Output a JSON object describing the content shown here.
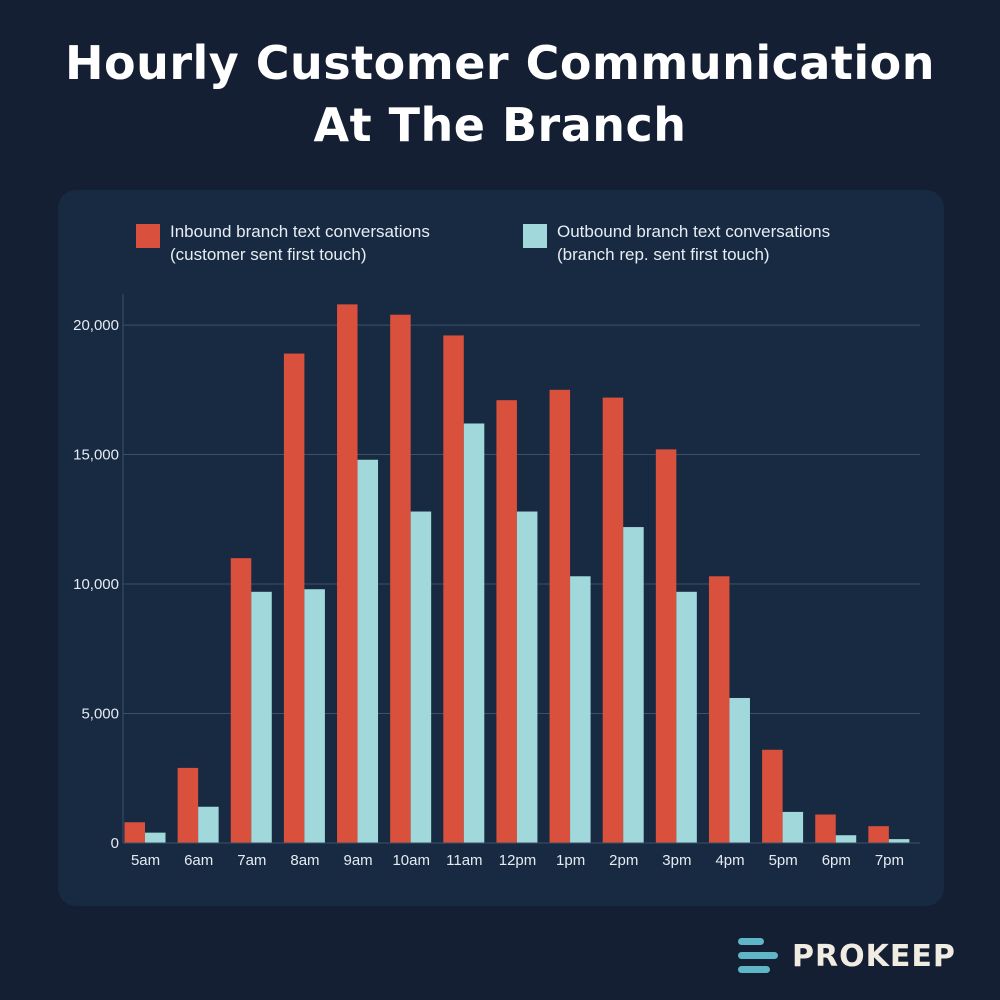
{
  "title_lines": [
    "Hourly Customer Communication",
    "At The Branch"
  ],
  "brand": {
    "name": "PROKEEP",
    "icon": "stacked-lines-logo-icon"
  },
  "colors": {
    "inbound": "#d9503c",
    "outbound": "#a1d8dc",
    "grid": "#3d5068",
    "text": "#e6ebf1"
  },
  "chart_data": {
    "type": "bar",
    "title": "Hourly Customer Communication At The Branch",
    "xlabel": "",
    "ylabel": "",
    "ylim": [
      0,
      21200
    ],
    "yticks": [
      0,
      5000,
      10000,
      15000,
      20000
    ],
    "ytick_labels": [
      "0",
      "5,000",
      "10,000",
      "15,000",
      "20,000"
    ],
    "grid": true,
    "legend": "top",
    "categories": [
      "5am",
      "6am",
      "7am",
      "8am",
      "9am",
      "10am",
      "11am",
      "12pm",
      "1pm",
      "2pm",
      "3pm",
      "4pm",
      "5pm",
      "6pm",
      "7pm"
    ],
    "series": [
      {
        "name": "Inbound branch text conversations (customer sent first touch)",
        "legend_lines": [
          "Inbound branch text conversations",
          "(customer sent first touch)"
        ],
        "color": "#d9503c",
        "values": [
          800,
          2900,
          11000,
          18900,
          20800,
          20400,
          19600,
          17100,
          17500,
          17200,
          15200,
          10300,
          3600,
          1100,
          650
        ]
      },
      {
        "name": "Outbound branch text conversations (branch rep. sent first touch)",
        "legend_lines": [
          "Outbound branch text conversations",
          "(branch rep. sent first touch)"
        ],
        "color": "#a1d8dc",
        "values": [
          400,
          1400,
          9700,
          9800,
          14800,
          12800,
          16200,
          12800,
          10300,
          12200,
          9700,
          5600,
          1200,
          300,
          150
        ]
      }
    ]
  }
}
